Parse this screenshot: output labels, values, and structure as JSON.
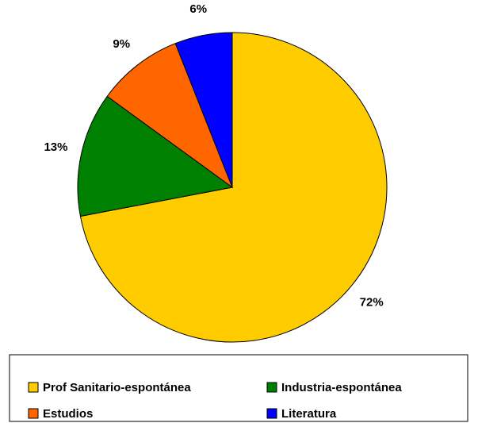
{
  "chart_data": {
    "type": "pie",
    "categories": [
      "Prof Sanitario-espontánea",
      "Industria-espontánea",
      "Estudios",
      "Literatura"
    ],
    "values": [
      72,
      13,
      9,
      6
    ],
    "value_labels": [
      "72%",
      "13%",
      "9%",
      "6%"
    ],
    "colors": [
      "#ffcc00",
      "#008000",
      "#ff6600",
      "#0000ff"
    ],
    "legend": "bottom"
  }
}
